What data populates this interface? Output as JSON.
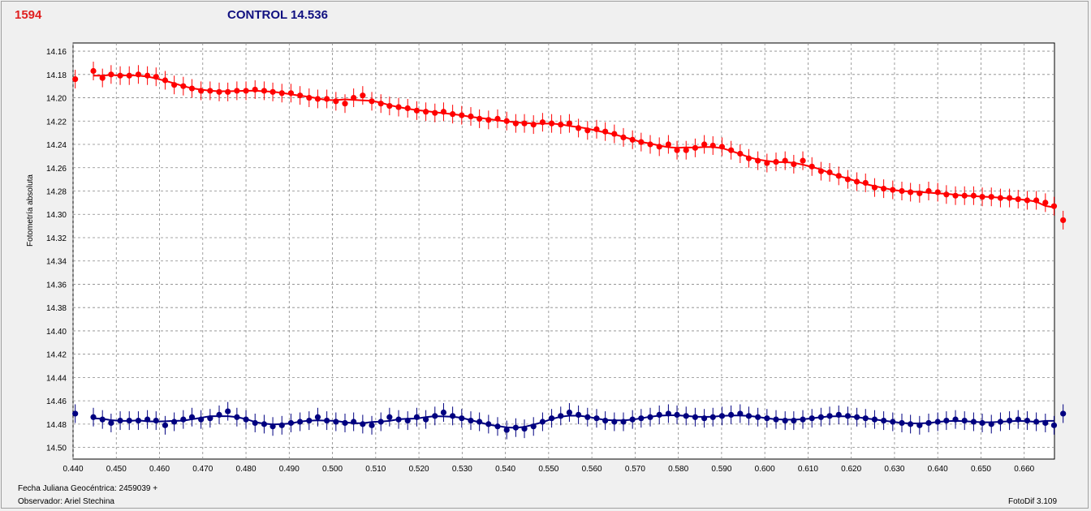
{
  "header": {
    "star_id": "1594",
    "control_label": "CONTROL 14.536"
  },
  "footer": {
    "date_label": "Fecha Juliana Geocéntrica: 2459039 +",
    "observer_label": "Observador: Ariel Stechina",
    "software_label": "FotoDif 3.109"
  },
  "chart_data": {
    "type": "scatter",
    "title": "1594",
    "subtitle": "CONTROL 14.536",
    "xlabel": "Fecha Juliana Geocéntrica: 2459039 +",
    "ylabel": "Fotometría absoluta",
    "xlim": [
      0.44,
      0.667
    ],
    "ylim": [
      14.51,
      14.153
    ],
    "y_inverted": true,
    "grid": true,
    "x_ticks": [
      "0.440",
      "0.450",
      "0.460",
      "0.470",
      "0.480",
      "0.490",
      "0.500",
      "0.510",
      "0.520",
      "0.530",
      "0.540",
      "0.550",
      "0.560",
      "0.570",
      "0.580",
      "0.590",
      "0.600",
      "0.610",
      "0.620",
      "0.630",
      "0.640",
      "0.650",
      "0.660"
    ],
    "y_ticks": [
      "14.16",
      "14.18",
      "14.20",
      "14.22",
      "14.24",
      "14.26",
      "14.28",
      "14.30",
      "14.32",
      "14.34",
      "14.36",
      "14.38",
      "14.40",
      "14.42",
      "14.44",
      "14.46",
      "14.48",
      "14.50"
    ],
    "error_bar": 0.008,
    "series": [
      {
        "color": "#ff0000",
        "x": [
          0.4405,
          0.4447,
          0.4468,
          0.4488,
          0.4509,
          0.453,
          0.4551,
          0.4572,
          0.4592,
          0.4613,
          0.4634,
          0.4655,
          0.4675,
          0.4696,
          0.4717,
          0.4738,
          0.4758,
          0.4779,
          0.48,
          0.4821,
          0.4842,
          0.4862,
          0.4883,
          0.4904,
          0.4925,
          0.4946,
          0.4966,
          0.4987,
          0.5008,
          0.5029,
          0.5049,
          0.507,
          0.5091,
          0.5112,
          0.5132,
          0.5153,
          0.5174,
          0.5195,
          0.5216,
          0.5237,
          0.5257,
          0.5278,
          0.5299,
          0.532,
          0.534,
          0.5361,
          0.5382,
          0.5403,
          0.5424,
          0.5444,
          0.5465,
          0.5486,
          0.5507,
          0.5528,
          0.5548,
          0.5569,
          0.559,
          0.5611,
          0.5631,
          0.5652,
          0.5673,
          0.5694,
          0.5714,
          0.5735,
          0.5756,
          0.5777,
          0.5797,
          0.5818,
          0.5839,
          0.586,
          0.588,
          0.5901,
          0.5922,
          0.5943,
          0.5963,
          0.5984,
          0.6005,
          0.6026,
          0.6047,
          0.6067,
          0.6088,
          0.6109,
          0.613,
          0.615,
          0.6171,
          0.6192,
          0.6213,
          0.6233,
          0.6254,
          0.6275,
          0.6296,
          0.6317,
          0.6337,
          0.6358,
          0.6379,
          0.64,
          0.642,
          0.6441,
          0.6462,
          0.6483,
          0.6503,
          0.6524,
          0.6545,
          0.6566,
          0.6586,
          0.6607,
          0.6628,
          0.6649,
          0.6669,
          0.669
        ],
        "y": [
          14.184,
          14.177,
          14.183,
          14.18,
          14.181,
          14.181,
          14.18,
          14.181,
          14.182,
          14.185,
          14.189,
          14.19,
          14.192,
          14.194,
          14.194,
          14.195,
          14.195,
          14.194,
          14.194,
          14.193,
          14.194,
          14.195,
          14.196,
          14.196,
          14.198,
          14.2,
          14.201,
          14.201,
          14.203,
          14.205,
          14.2,
          14.198,
          14.203,
          14.205,
          14.207,
          14.208,
          14.209,
          14.211,
          14.212,
          14.213,
          14.212,
          14.214,
          14.215,
          14.216,
          14.218,
          14.219,
          14.218,
          14.22,
          14.222,
          14.222,
          14.223,
          14.221,
          14.222,
          14.223,
          14.222,
          14.226,
          14.228,
          14.227,
          14.229,
          14.231,
          14.234,
          14.236,
          14.238,
          14.24,
          14.242,
          14.24,
          14.245,
          14.245,
          14.243,
          14.24,
          14.241,
          14.242,
          14.245,
          14.248,
          14.252,
          14.254,
          14.256,
          14.255,
          14.254,
          14.257,
          14.254,
          14.259,
          14.263,
          14.264,
          14.267,
          14.27,
          14.272,
          14.273,
          14.277,
          14.278,
          14.279,
          14.28,
          14.281,
          14.282,
          14.28,
          14.281,
          14.283,
          14.284,
          14.284,
          14.284,
          14.285,
          14.285,
          14.286,
          14.286,
          14.287,
          14.288,
          14.288,
          14.29,
          14.293,
          14.305
        ]
      },
      {
        "color": "#000080",
        "x": [
          0.4405,
          0.4447,
          0.4468,
          0.4488,
          0.4509,
          0.453,
          0.4551,
          0.4572,
          0.4592,
          0.4613,
          0.4634,
          0.4655,
          0.4675,
          0.4696,
          0.4717,
          0.4738,
          0.4758,
          0.4779,
          0.48,
          0.4821,
          0.4842,
          0.4862,
          0.4883,
          0.4904,
          0.4925,
          0.4946,
          0.4966,
          0.4987,
          0.5008,
          0.5029,
          0.5049,
          0.507,
          0.5091,
          0.5112,
          0.5132,
          0.5153,
          0.5174,
          0.5195,
          0.5216,
          0.5237,
          0.5257,
          0.5278,
          0.5299,
          0.532,
          0.534,
          0.5361,
          0.5382,
          0.5403,
          0.5424,
          0.5444,
          0.5465,
          0.5486,
          0.5507,
          0.5528,
          0.5548,
          0.5569,
          0.559,
          0.5611,
          0.5631,
          0.5652,
          0.5673,
          0.5694,
          0.5714,
          0.5735,
          0.5756,
          0.5777,
          0.5797,
          0.5818,
          0.5839,
          0.586,
          0.588,
          0.5901,
          0.5922,
          0.5943,
          0.5963,
          0.5984,
          0.6005,
          0.6026,
          0.6047,
          0.6067,
          0.6088,
          0.6109,
          0.613,
          0.615,
          0.6171,
          0.6192,
          0.6213,
          0.6233,
          0.6254,
          0.6275,
          0.6296,
          0.6317,
          0.6337,
          0.6358,
          0.6379,
          0.64,
          0.642,
          0.6441,
          0.6462,
          0.6483,
          0.6503,
          0.6524,
          0.6545,
          0.6566,
          0.6586,
          0.6607,
          0.6628,
          0.6649,
          0.6669,
          0.669
        ],
        "y": [
          14.471,
          14.474,
          14.476,
          14.479,
          14.477,
          14.477,
          14.477,
          14.476,
          14.477,
          14.481,
          14.478,
          14.476,
          14.474,
          14.476,
          14.475,
          14.472,
          14.469,
          14.474,
          14.476,
          14.479,
          14.48,
          14.482,
          14.481,
          14.479,
          14.478,
          14.477,
          14.474,
          14.477,
          14.478,
          14.479,
          14.478,
          14.48,
          14.481,
          14.478,
          14.474,
          14.476,
          14.477,
          14.474,
          14.476,
          14.473,
          14.47,
          14.473,
          14.475,
          14.477,
          14.478,
          14.48,
          14.482,
          14.485,
          14.483,
          14.484,
          14.482,
          14.478,
          14.475,
          14.473,
          14.47,
          14.472,
          14.474,
          14.475,
          14.477,
          14.478,
          14.478,
          14.476,
          14.475,
          14.474,
          14.472,
          14.471,
          14.472,
          14.473,
          14.474,
          14.475,
          14.474,
          14.473,
          14.472,
          14.471,
          14.473,
          14.474,
          14.475,
          14.476,
          14.477,
          14.477,
          14.476,
          14.475,
          14.474,
          14.473,
          14.472,
          14.473,
          14.474,
          14.475,
          14.476,
          14.477,
          14.478,
          14.479,
          14.48,
          14.481,
          14.479,
          14.478,
          14.477,
          14.476,
          14.477,
          14.478,
          14.479,
          14.48,
          14.478,
          14.477,
          14.476,
          14.477,
          14.478,
          14.479,
          14.481,
          14.471
        ]
      }
    ]
  }
}
